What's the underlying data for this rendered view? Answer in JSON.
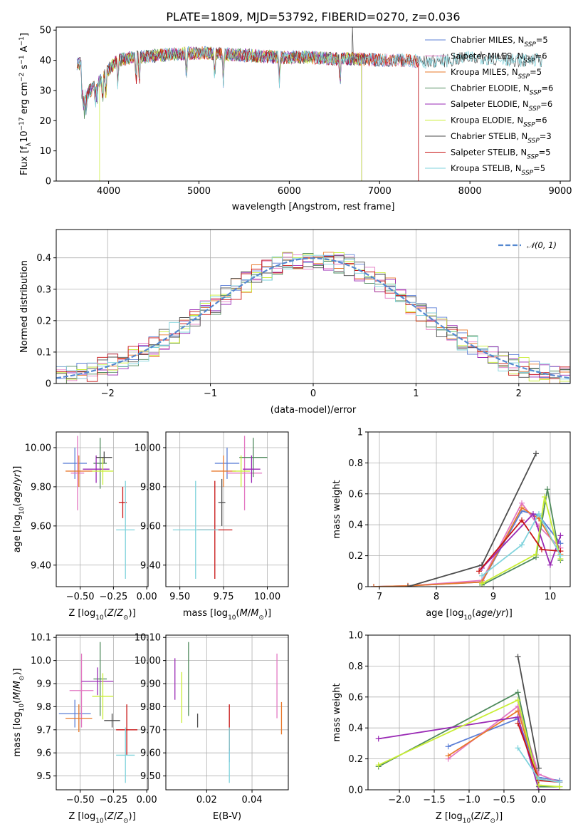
{
  "colors": {
    "Chabrier MILES": "#5b7fd6",
    "Salpeter MILES": "#e377c2",
    "Kroupa MILES": "#e8782a",
    "Chabrier ELODIE": "#4f8a5c",
    "Salpeter ELODIE": "#9a2ab5",
    "Kroupa ELODIE": "#c9ee35",
    "Chabrier STELIB": "#4d4d4d",
    "Salpeter STELIB": "#c81414",
    "Kroupa STELIB": "#7fd3dc"
  },
  "chart_data": [
    {
      "id": "spectrum",
      "type": "line",
      "title": "PLATE=1809, MJD=53792, FIBERID=0270, z=0.036",
      "xlabel": "wavelength [Angstrom, rest frame]",
      "ylabel": "Flux [fλ10⁻¹⁷ erg cm⁻² s⁻¹ A⁻¹]",
      "xlim": [
        3420,
        9110
      ],
      "ylim": [
        0,
        51
      ],
      "xticks": [
        4000,
        5000,
        6000,
        7000,
        8000,
        9000
      ],
      "yticks": [
        0,
        10,
        20,
        30,
        40,
        50
      ],
      "grid": false,
      "legend_position": "top-right",
      "legend": [
        {
          "series": "Chabrier MILES",
          "label": "Chabrier MILES, N",
          "sub": "SSP",
          "tail": "=5"
        },
        {
          "series": "Salpeter MILES",
          "label": "Salpeter MILES, N",
          "sub": "SSP",
          "tail": "=6"
        },
        {
          "series": "Kroupa MILES",
          "label": "Kroupa MILES, N",
          "sub": "SSP",
          "tail": "=5"
        },
        {
          "series": "Chabrier ELODIE",
          "label": "Chabrier ELODIE, N",
          "sub": "SSP",
          "tail": "=6"
        },
        {
          "series": "Salpeter ELODIE",
          "label": "Salpeter ELODIE, N",
          "sub": "SSP",
          "tail": "=6"
        },
        {
          "series": "Kroupa ELODIE",
          "label": "Kroupa ELODIE, N",
          "sub": "SSP",
          "tail": "=6"
        },
        {
          "series": "Chabrier STELIB",
          "label": "Chabrier STELIB, N",
          "sub": "SSP",
          "tail": "=3"
        },
        {
          "series": "Salpeter STELIB",
          "label": "Salpeter STELIB, N",
          "sub": "SSP",
          "tail": "=5"
        },
        {
          "series": "Kroupa STELIB",
          "label": "Kroupa STELIB, N",
          "sub": "SSP",
          "tail": "=5"
        }
      ],
      "continuum": {
        "x": [
          3700,
          3800,
          3900,
          4000,
          4100,
          4300,
          4500,
          4700,
          5000,
          5300,
          5600,
          5900,
          6200,
          6500,
          6800,
          7000,
          7300,
          7500,
          7800,
          8000,
          8300,
          8500,
          8800,
          9000
        ],
        "y": [
          28,
          30,
          33,
          37,
          40,
          41,
          41.5,
          42,
          42.5,
          42,
          41.5,
          41,
          41,
          40.5,
          40.5,
          40,
          40,
          39.5,
          40,
          41,
          40.5,
          40,
          40,
          39
        ]
      },
      "coverage": {
        "Chabrier MILES": [
          3650,
          7430
        ],
        "Salpeter MILES": [
          3650,
          7430
        ],
        "Kroupa MILES": [
          3650,
          7430
        ],
        "Chabrier ELODIE": [
          3650,
          6800
        ],
        "Salpeter ELODIE": [
          3650,
          6800
        ],
        "Kroupa ELODIE": [
          3900,
          6800
        ],
        "Chabrier STELIB": [
          3650,
          8800
        ],
        "Salpeter STELIB": [
          3650,
          7430
        ],
        "Kroupa STELIB": [
          3650,
          8800
        ]
      }
    },
    {
      "id": "residuals",
      "type": "step",
      "xlabel": "(data-model)/error",
      "ylabel": "Normed distribution",
      "xlim": [
        -2.5,
        2.5
      ],
      "ylim": [
        0,
        0.49
      ],
      "xticks": [
        -2,
        -1,
        0,
        1,
        2
      ],
      "yticks": [
        0.0,
        0.1,
        0.2,
        0.3,
        0.4
      ],
      "grid": true,
      "legend_position": "top-right",
      "reference_label": "𝒩(0, 1)",
      "bin_width": 0.1
    },
    {
      "id": "age_vs_Z",
      "type": "errorbar",
      "xlabel": "Z [log10(Z/Z⊙)]",
      "ylabel": "age [log10(age/yr)]",
      "xlim": [
        -0.68,
        0.01
      ],
      "ylim": [
        9.29,
        10.08
      ],
      "xticks": [
        -0.5,
        -0.25,
        0.0
      ],
      "yticks": [
        9.4,
        9.6,
        9.8,
        10.0
      ],
      "grid": true,
      "points": {
        "Chabrier MILES": {
          "x": -0.54,
          "xerr": 0.09,
          "y": 9.92,
          "yerr": 0.08
        },
        "Salpeter MILES": {
          "x": -0.52,
          "xerr": 0.05,
          "y": 9.87,
          "yerr": 0.19
        },
        "Kroupa MILES": {
          "x": -0.51,
          "xerr": 0.1,
          "y": 9.88,
          "yerr": 0.08
        },
        "Chabrier ELODIE": {
          "x": -0.35,
          "xerr": 0.05,
          "y": 9.92,
          "yerr": 0.13
        },
        "Salpeter ELODIE": {
          "x": -0.38,
          "xerr": 0.1,
          "y": 9.89,
          "yerr": 0.07
        },
        "Kroupa ELODIE": {
          "x": -0.33,
          "xerr": 0.08,
          "y": 9.88,
          "yerr": 0.07
        },
        "Chabrier STELIB": {
          "x": -0.32,
          "xerr": 0.06,
          "y": 9.95,
          "yerr": 0.03
        },
        "Salpeter STELIB": {
          "x": -0.18,
          "xerr": 0.03,
          "y": 9.72,
          "yerr": 0.08
        },
        "Kroupa STELIB": {
          "x": -0.16,
          "xerr": 0.07,
          "y": 9.58,
          "yerr": 0.25
        }
      }
    },
    {
      "id": "age_vs_mass",
      "type": "errorbar",
      "xlabel": "mass [log10(M/M⊙)]",
      "ylabel": "",
      "xlim": [
        9.42,
        10.12
      ],
      "ylim": [
        9.29,
        10.08
      ],
      "xticks": [
        9.5,
        9.75,
        10.0
      ],
      "yticks": [
        9.4,
        9.6,
        9.8,
        10.0
      ],
      "grid": true,
      "points": {
        "Chabrier MILES": {
          "x": 9.77,
          "xerr": 0.07,
          "y": 9.92,
          "yerr": 0.08
        },
        "Salpeter MILES": {
          "x": 9.87,
          "xerr": 0.1,
          "y": 9.87,
          "yerr": 0.19
        },
        "Kroupa MILES": {
          "x": 9.75,
          "xerr": 0.07,
          "y": 9.88,
          "yerr": 0.08
        },
        "Chabrier ELODIE": {
          "x": 9.92,
          "xerr": 0.08,
          "y": 9.95,
          "yerr": 0.1
        },
        "Salpeter ELODIE": {
          "x": 9.91,
          "xerr": 0.05,
          "y": 9.89,
          "yerr": 0.07
        },
        "Kroupa ELODIE": {
          "x": 9.85,
          "xerr": 0.05,
          "y": 9.88,
          "yerr": 0.08
        },
        "Chabrier STELIB": {
          "x": 9.74,
          "xerr": 0.02,
          "y": 9.72,
          "yerr": 0.12
        },
        "Salpeter STELIB": {
          "x": 9.7,
          "xerr": 0.1,
          "y": 9.58,
          "yerr": 0.25
        },
        "Kroupa STELIB": {
          "x": 9.59,
          "xerr": 0.13,
          "y": 9.58,
          "yerr": 0.25
        }
      }
    },
    {
      "id": "massweight_vs_age",
      "type": "line",
      "xlabel": "age [log10(age/yr)]",
      "ylabel": "mass weight",
      "xlim": [
        6.8,
        10.35
      ],
      "ylim": [
        0,
        1.0
      ],
      "xticks": [
        7,
        8,
        9,
        10
      ],
      "yticks": [
        0.0,
        0.2,
        0.4,
        0.6,
        0.8,
        1.0
      ],
      "grid": true,
      "series": [
        {
          "name": "Chabrier MILES",
          "x": [
            6.9,
            7.5,
            8.8,
            9.5,
            9.8,
            10.18
          ],
          "y": [
            0,
            0.005,
            0.03,
            0.49,
            0.46,
            0.28
          ]
        },
        {
          "name": "Salpeter MILES",
          "x": [
            6.9,
            7.5,
            8.8,
            9.5,
            9.8,
            10.18
          ],
          "y": [
            0,
            0.005,
            0.04,
            0.54,
            0.39,
            0.25
          ]
        },
        {
          "name": "Kroupa MILES",
          "x": [
            6.9,
            7.5,
            8.8,
            9.5,
            9.8,
            10.18
          ],
          "y": [
            0,
            0.005,
            0.03,
            0.51,
            0.44,
            0.21
          ]
        },
        {
          "name": "Chabrier ELODIE",
          "x": [
            8.8,
            9.75,
            9.95,
            10.18
          ],
          "y": [
            0.01,
            0.19,
            0.63,
            0.17
          ]
        },
        {
          "name": "Salpeter ELODIE",
          "x": [
            8.8,
            9.7,
            10.0,
            10.18
          ],
          "y": [
            0.12,
            0.47,
            0.14,
            0.33
          ]
        },
        {
          "name": "Kroupa ELODIE",
          "x": [
            8.8,
            9.75,
            9.9,
            10.18
          ],
          "y": [
            0.02,
            0.21,
            0.58,
            0.18
          ]
        },
        {
          "name": "Chabrier STELIB",
          "x": [
            7.5,
            8.8,
            9.75
          ],
          "y": [
            0.0,
            0.14,
            0.86
          ]
        },
        {
          "name": "Salpeter STELIB",
          "x": [
            8.75,
            9.5,
            9.85,
            10.18
          ],
          "y": [
            0.1,
            0.43,
            0.24,
            0.23
          ]
        },
        {
          "name": "Kroupa STELIB",
          "x": [
            8.8,
            9.5,
            9.8,
            10.18
          ],
          "y": [
            0.07,
            0.27,
            0.47,
            0.2
          ]
        }
      ]
    },
    {
      "id": "mass_vs_Z",
      "type": "errorbar",
      "xlabel": "Z [log10(Z/Z⊙)]",
      "ylabel": "mass [log10(M/M⊙)]",
      "xlim": [
        -0.68,
        0.01
      ],
      "ylim": [
        9.44,
        10.11
      ],
      "xticks": [
        -0.5,
        -0.25,
        0.0
      ],
      "yticks": [
        9.5,
        9.6,
        9.7,
        9.8,
        9.9,
        10.0,
        10.1
      ],
      "grid": true,
      "points": {
        "Chabrier MILES": {
          "x": -0.54,
          "xerr": 0.12,
          "y": 9.77,
          "yerr": 0.06
        },
        "Salpeter MILES": {
          "x": -0.49,
          "xerr": 0.09,
          "y": 9.87,
          "yerr": 0.16
        },
        "Kroupa MILES": {
          "x": -0.51,
          "xerr": 0.1,
          "y": 9.75,
          "yerr": 0.06
        },
        "Chabrier ELODIE": {
          "x": -0.35,
          "xerr": 0.05,
          "y": 9.92,
          "yerr": 0.16
        },
        "Salpeter ELODIE": {
          "x": -0.37,
          "xerr": 0.12,
          "y": 9.91,
          "yerr": 0.06
        },
        "Kroupa ELODIE": {
          "x": -0.33,
          "xerr": 0.08,
          "y": 9.845,
          "yerr": 0.1
        },
        "Chabrier STELIB": {
          "x": -0.26,
          "xerr": 0.06,
          "y": 9.74,
          "yerr": 0.03
        },
        "Salpeter STELIB": {
          "x": -0.15,
          "xerr": 0.08,
          "y": 9.7,
          "yerr": 0.11
        },
        "Kroupa STELIB": {
          "x": -0.16,
          "xerr": 0.07,
          "y": 9.59,
          "yerr": 0.12
        }
      }
    },
    {
      "id": "mass_vs_EBV",
      "type": "errorbar",
      "xlabel": "E(B-V)",
      "ylabel": "",
      "xlim": [
        0.002,
        0.056
      ],
      "ylim": [
        9.44,
        10.11
      ],
      "xticks": [
        0.02,
        0.04
      ],
      "yticks": [
        9.5,
        9.6,
        9.7,
        9.8,
        9.9,
        10.0,
        10.1
      ],
      "grid": true,
      "points": {
        "Chabrier MILES": {
          "x": 0.03,
          "xerr": 0.0,
          "y": 9.59,
          "yerr": 0.03
        },
        "Salpeter MILES": {
          "x": 0.051,
          "xerr": 0.0,
          "y": 9.89,
          "yerr": 0.14
        },
        "Kroupa MILES": {
          "x": 0.053,
          "xerr": 0.0,
          "y": 9.75,
          "yerr": 0.07
        },
        "Chabrier ELODIE": {
          "x": 0.012,
          "xerr": 0.0,
          "y": 9.92,
          "yerr": 0.16
        },
        "Salpeter ELODIE": {
          "x": 0.006,
          "xerr": 0.0,
          "y": 9.92,
          "yerr": 0.09
        },
        "Kroupa ELODIE": {
          "x": 0.009,
          "xerr": 0.0,
          "y": 9.84,
          "yerr": 0.11
        },
        "Chabrier STELIB": {
          "x": 0.016,
          "xerr": 0.0,
          "y": 9.74,
          "yerr": 0.03
        },
        "Salpeter STELIB": {
          "x": 0.03,
          "xerr": 0.0,
          "y": 9.71,
          "yerr": 0.1
        },
        "Kroupa STELIB": {
          "x": 0.03,
          "xerr": 0.0,
          "y": 9.59,
          "yerr": 0.12
        }
      }
    },
    {
      "id": "massweight_vs_Z",
      "type": "line",
      "xlabel": "Z [log10(Z/Z⊙)]",
      "ylabel": "mass weight",
      "xlim": [
        -2.45,
        0.45
      ],
      "ylim": [
        0,
        1.0
      ],
      "xticks": [
        -2.0,
        -1.5,
        -1.0,
        -0.5,
        0.0
      ],
      "yticks": [
        0.0,
        0.2,
        0.4,
        0.6,
        0.8,
        1.0
      ],
      "grid": true,
      "series": [
        {
          "name": "Chabrier MILES",
          "x": [
            -1.3,
            -0.3,
            0.0,
            0.3
          ],
          "y": [
            0.28,
            0.46,
            0.08,
            0.06
          ]
        },
        {
          "name": "Salpeter MILES",
          "x": [
            -1.3,
            -0.3,
            0.0,
            0.3
          ],
          "y": [
            0.2,
            0.54,
            0.1,
            0.05
          ]
        },
        {
          "name": "Kroupa MILES",
          "x": [
            -1.3,
            -0.3,
            0.0,
            0.3
          ],
          "y": [
            0.22,
            0.51,
            0.07,
            0.05
          ]
        },
        {
          "name": "Chabrier ELODIE",
          "x": [
            -2.3,
            -0.3,
            0.0,
            0.3
          ],
          "y": [
            0.15,
            0.63,
            0.02,
            0.02
          ]
        },
        {
          "name": "Salpeter ELODIE",
          "x": [
            -2.3,
            -0.3,
            0.0,
            0.3
          ],
          "y": [
            0.33,
            0.47,
            0.0,
            0.0
          ]
        },
        {
          "name": "Kroupa ELODIE",
          "x": [
            -2.3,
            -0.3,
            0.0,
            0.3
          ],
          "y": [
            0.16,
            0.58,
            0.03,
            0.02
          ]
        },
        {
          "name": "Chabrier STELIB",
          "x": [
            -0.3,
            0.0
          ],
          "y": [
            0.86,
            0.14
          ]
        },
        {
          "name": "Salpeter STELIB",
          "x": [
            -0.3,
            0.0,
            0.3
          ],
          "y": [
            0.43,
            0.06,
            0.05
          ]
        },
        {
          "name": "Kroupa STELIB",
          "x": [
            -0.3,
            0.0,
            0.3
          ],
          "y": [
            0.27,
            0.07,
            0.05
          ]
        }
      ]
    }
  ]
}
